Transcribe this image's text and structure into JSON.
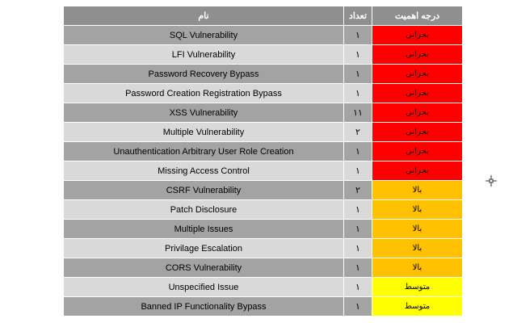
{
  "table": {
    "headers": {
      "name": "نام",
      "count": "تعداد",
      "severity": "درجه اهمیت"
    },
    "rows": [
      {
        "name": "SQL Vulnerability",
        "count": "۱",
        "severity": "بحرانی",
        "level": "critical"
      },
      {
        "name": "LFI Vulnerability",
        "count": "۱",
        "severity": "بحرانی",
        "level": "critical"
      },
      {
        "name": "Password Recovery Bypass",
        "count": "۱",
        "severity": "بحرانی",
        "level": "critical"
      },
      {
        "name": "Password Creation Registration Bypass",
        "count": "۱",
        "severity": "بحرانی",
        "level": "critical"
      },
      {
        "name": "XSS Vulnerability",
        "count": "۱۱",
        "severity": "بحرانی",
        "level": "critical"
      },
      {
        "name": "Multiple Vulnerability",
        "count": "۲",
        "severity": "بحرانی",
        "level": "critical"
      },
      {
        "name": "Unauthentication Arbitrary User Role Creation",
        "count": "۱",
        "severity": "بحرانی",
        "level": "critical"
      },
      {
        "name": "Missing Access Control",
        "count": "۱",
        "severity": "بحرانی",
        "level": "critical"
      },
      {
        "name": "CSRF Vulnerability",
        "count": "۲",
        "severity": "بالا",
        "level": "high"
      },
      {
        "name": "Patch Disclosure",
        "count": "۱",
        "severity": "بالا",
        "level": "high"
      },
      {
        "name": "Multiple Issues",
        "count": "۱",
        "severity": "بالا",
        "level": "high"
      },
      {
        "name": "Privilage Escalation",
        "count": "۱",
        "severity": "بالا",
        "level": "high"
      },
      {
        "name": "CORS Vulnerability",
        "count": "۱",
        "severity": "بالا",
        "level": "high"
      },
      {
        "name": "Unspecified Issue",
        "count": "۱",
        "severity": "متوسط",
        "level": "medium"
      },
      {
        "name": "Banned IP Functionality Bypass",
        "count": "۱",
        "severity": "متوسط",
        "level": "medium"
      }
    ]
  },
  "colors": {
    "header_bg": "#8f8f8f",
    "row_dark": "#a3a3a3",
    "row_light": "#d9d9d9",
    "critical": "#ff0000",
    "high": "#ffc000",
    "medium": "#ffff00"
  },
  "icons": {
    "cursor": "move-cursor-icon"
  }
}
